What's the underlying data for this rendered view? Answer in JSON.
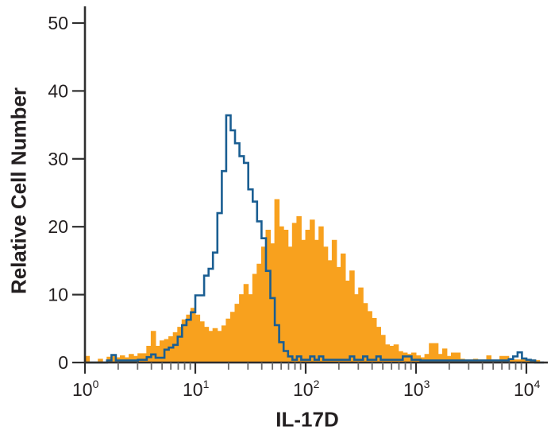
{
  "figure": {
    "background": "#ffffff",
    "text_color": "#231f20",
    "axis_color": "#2f2f2f",
    "minor_tick_color": "#6a6a6a"
  },
  "chart_data": {
    "type": "histogram",
    "subtype": "flow-cytometry-overlay",
    "title": "",
    "xlabel": "IL-17D",
    "ylabel": "Relative Cell Number",
    "x_scale": "log10",
    "xlim_log": [
      0,
      4.2
    ],
    "ylim": [
      0,
      50
    ],
    "grid": false,
    "legend": "none",
    "y_ticks": [
      0,
      10,
      20,
      30,
      40,
      50
    ],
    "x_ticks": [
      {
        "base": "10",
        "exp": "0",
        "log": 0
      },
      {
        "base": "10",
        "exp": "1",
        "log": 1
      },
      {
        "base": "10",
        "exp": "2",
        "log": 2
      },
      {
        "base": "10",
        "exp": "3",
        "log": 3
      },
      {
        "base": "10",
        "exp": "4",
        "log": 4
      }
    ],
    "bin_start_log": 0,
    "bin_width_log": 0.04,
    "series": [
      {
        "name": "filled-histogram-orange",
        "style": "filled",
        "color": "#F8A11E",
        "heights": [
          0.9,
          0,
          0,
          0.5,
          0,
          0.8,
          0.9,
          0.7,
          1.0,
          0.7,
          1.2,
          0.9,
          1.3,
          1.3,
          2.4,
          4.6,
          2.4,
          3.2,
          3.4,
          3.8,
          4.4,
          5.2,
          6.3,
          7.0,
          8.0,
          7.0,
          6.0,
          5.2,
          4.6,
          5.0,
          4.6,
          5.4,
          6.4,
          7.4,
          8.6,
          10.0,
          11.5,
          10.0,
          13.0,
          14.5,
          17.0,
          19.5,
          17.5,
          24.0,
          20.0,
          19.5,
          17.0,
          20.5,
          21.5,
          18.0,
          19.5,
          21.0,
          18.0,
          20.0,
          17.0,
          15.0,
          18.0,
          14.0,
          16.0,
          12.0,
          13.5,
          10.0,
          11.0,
          8.7,
          7.5,
          6.5,
          5.2,
          4.0,
          2.6,
          2.4,
          2.6,
          1.6,
          1.4,
          1.2,
          1.4,
          1.0,
          0.7,
          1.2,
          2.8,
          2.8,
          1.2,
          2.0,
          0.9,
          1.4,
          1.4,
          0.5,
          0.4,
          0.4,
          0.5,
          0.4,
          0.4,
          1.0,
          0.4,
          0.4,
          0.9,
          0.9,
          0.4,
          0.4,
          0.4,
          0.4,
          0.3,
          0.4,
          0.3,
          0
        ]
      },
      {
        "name": "open-histogram-blue",
        "style": "outline",
        "color": "#1A5E92",
        "line_width": 2.6,
        "heights": [
          0,
          0,
          0,
          0,
          0,
          0.3,
          1.1,
          0.3,
          0.3,
          0.3,
          0.3,
          0.3,
          0.4,
          0.4,
          0.8,
          1.2,
          0.7,
          0.7,
          1.9,
          2.2,
          2.6,
          3.8,
          5.5,
          6.3,
          7.4,
          9.9,
          9.9,
          12.8,
          13.8,
          16.2,
          22.0,
          28.2,
          36.4,
          34.2,
          32.3,
          30.4,
          29.4,
          25.5,
          23.7,
          20.8,
          18.3,
          13.5,
          9.5,
          5.5,
          3.0,
          1.7,
          0.9,
          0.4,
          0.9,
          0.4,
          0.4,
          0.9,
          0.4,
          0.9,
          0.4,
          0.4,
          0.4,
          0.4,
          0.4,
          0.4,
          0.9,
          0.4,
          0.4,
          0.9,
          0.4,
          0.4,
          0.9,
          0.4,
          0.4,
          0.4,
          0.4,
          0.4,
          0.9,
          0.9,
          0.4,
          0.4,
          0.3,
          0.3,
          0.3,
          0.3,
          0.3,
          0.3,
          0.3,
          0.3,
          0.3,
          0.3,
          0.3,
          0.3,
          0.3,
          0.3,
          0.3,
          0.3,
          0.3,
          0.3,
          0.3,
          0.3,
          0.5,
          0.9,
          1.5,
          0.6,
          0.4,
          0.3,
          0,
          0
        ]
      }
    ]
  }
}
